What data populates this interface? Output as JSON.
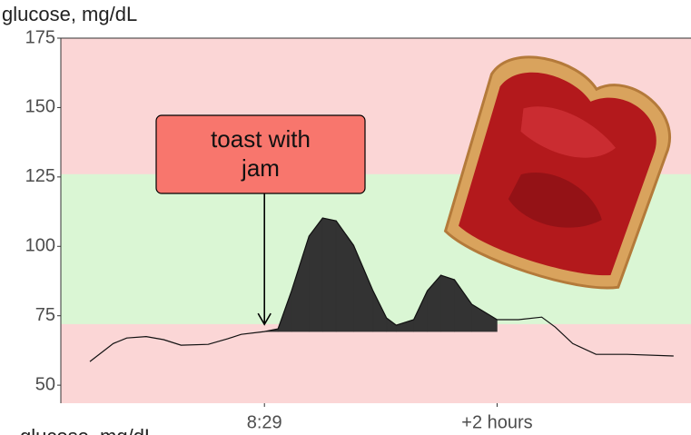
{
  "chart_data": {
    "type": "line",
    "y_label": "glucose, mg/dL",
    "footer_label": "glucose, mg/dL",
    "x": [
      -90,
      -78,
      -71,
      -61,
      -52,
      -43,
      -29,
      -19,
      -12,
      0,
      7,
      14,
      23,
      30,
      37,
      46,
      56,
      63,
      68,
      77,
      84,
      91,
      98,
      107,
      120,
      131,
      143,
      150,
      159,
      171,
      187,
      211
    ],
    "values": [
      58.5,
      65,
      67,
      67.5,
      66.4,
      64.4,
      64.7,
      66.7,
      68.3,
      69.3,
      70.3,
      84,
      103.7,
      110.2,
      109.2,
      100.4,
      84,
      74.2,
      71.6,
      73.6,
      84,
      89.6,
      88,
      79.1,
      73.6,
      73.6,
      74.5,
      70.9,
      65,
      61.1,
      61.1,
      60.5
    ],
    "color": "#111111",
    "fill_color": "#333333",
    "fill_range": [
      0,
      120
    ],
    "fill_baseline": 69.3,
    "background": "#fbd6d6",
    "bands": [
      {
        "from": 72,
        "to": 126,
        "color": "#daf6d4"
      }
    ],
    "xlim": [
      -105,
      220
    ],
    "ylim": [
      43.5,
      175
    ],
    "yticks": [
      50,
      75,
      100,
      125,
      150,
      175
    ],
    "xticks": [
      {
        "value": 0,
        "label": "8:29"
      },
      {
        "value": 120,
        "label": "+2 hours"
      }
    ],
    "annotation": {
      "lines": [
        "toast with",
        "jam"
      ],
      "x": 0,
      "color": "#f8766d"
    }
  }
}
